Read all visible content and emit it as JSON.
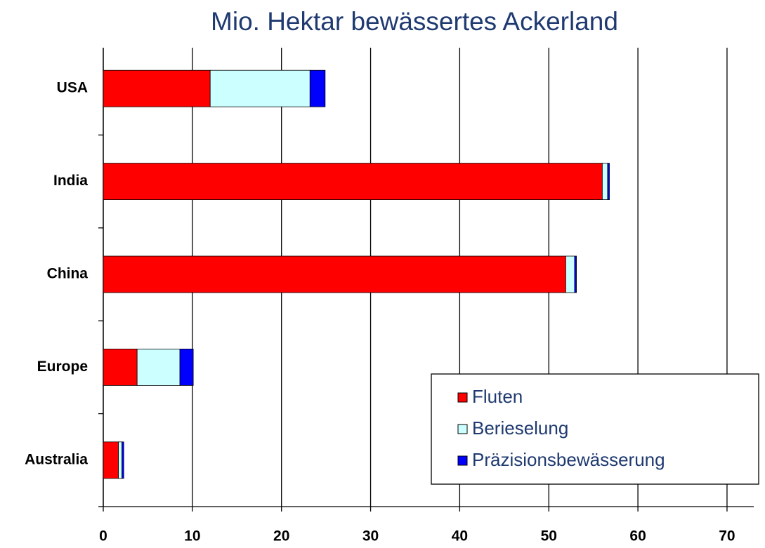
{
  "chart_data": {
    "type": "stacked_barh",
    "title": "Mio. Hektar bewässertes Ackerland",
    "categories": [
      "USA",
      "India",
      "China",
      "Europe",
      "Australia"
    ],
    "series": [
      {
        "name": "Fluten",
        "color": "#ff0000",
        "values": [
          12,
          56.0,
          51.9,
          3.8,
          1.7
        ]
      },
      {
        "name": "Berieselung",
        "color": "#ccffff",
        "values": [
          11.2,
          0.6,
          1.0,
          4.8,
          0.4
        ]
      },
      {
        "name": "Präzisionsbewässerung",
        "color": "#0000ff",
        "values": [
          1.7,
          0.2,
          0.2,
          1.5,
          0.2
        ]
      }
    ],
    "xlim": [
      0,
      73
    ],
    "xticks": [
      0,
      10,
      20,
      30,
      40,
      50,
      60,
      70
    ],
    "grid": true,
    "legend": "lower right"
  }
}
